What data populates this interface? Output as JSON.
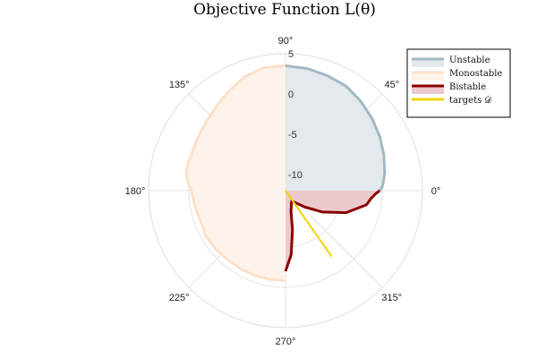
{
  "chart_data": {
    "type": "polar-area",
    "title": "Objective Function  L(θ)",
    "angular_ticks": [
      {
        "deg": 0,
        "label": "0°"
      },
      {
        "deg": 45,
        "label": "45°"
      },
      {
        "deg": 90,
        "label": "90°"
      },
      {
        "deg": 135,
        "label": "135°"
      },
      {
        "deg": 180,
        "label": "180°"
      },
      {
        "deg": 225,
        "label": "225°"
      },
      {
        "deg": 270,
        "label": "270°"
      },
      {
        "deg": 315,
        "label": "315°"
      }
    ],
    "radial_ticks": [
      {
        "value": -10,
        "label": "-10"
      },
      {
        "value": -5,
        "label": "-5"
      },
      {
        "value": 0,
        "label": "0"
      },
      {
        "value": 5,
        "label": "5"
      }
    ],
    "rlim": [
      -12,
      5
    ],
    "grid": true,
    "legend_position": "top-right",
    "series": [
      {
        "name": "Unstable",
        "line_color": "#a2b8c4",
        "fill_color": "#e3e9ec",
        "theta_deg": [
          0,
          2,
          5,
          10,
          20,
          30,
          40,
          50,
          60,
          70,
          80,
          90
        ],
        "r": [
          -0.3,
          0.0,
          0.2,
          0.5,
          1.0,
          1.5,
          2.0,
          2.5,
          3.0,
          3.2,
          3.4,
          3.5
        ]
      },
      {
        "name": "Monostable",
        "line_color": "#fde0c9",
        "fill_color": "#fef3ea",
        "theta_deg": [
          90,
          100,
          110,
          120,
          130,
          140,
          150,
          160,
          165,
          170,
          175,
          180,
          185,
          190,
          195,
          200,
          210,
          220,
          230,
          240,
          250,
          260,
          270
        ],
        "r": [
          3.5,
          3.5,
          3.0,
          2.2,
          1.5,
          1.0,
          0.7,
          0.5,
          0.6,
          0.5,
          0.2,
          -0.3,
          -0.5,
          -0.6,
          -0.7,
          -0.8,
          -0.6,
          -0.7,
          -0.8,
          -0.8,
          -0.8,
          -0.8,
          -0.8
        ]
      },
      {
        "name": "Bistable",
        "line_color": "#8b0000",
        "fill_color": "#ecc9cc",
        "theta_deg": [
          270,
          275,
          280,
          285,
          290,
          295,
          300,
          310,
          320,
          330,
          340,
          350,
          355,
          358,
          360
        ],
        "r": [
          -2.0,
          -4.0,
          -7.0,
          -9.4,
          -9.9,
          -10.3,
          -10.5,
          -10.0,
          -8.8,
          -6.7,
          -4.0,
          -1.8,
          -1.3,
          -0.8,
          -0.3
        ]
      },
      {
        "name": "targets 𝒟",
        "line_color": "#f5d300",
        "type": "line",
        "theta_deg": [
          305,
          305
        ],
        "r": [
          -12,
          -2.0
        ]
      }
    ]
  }
}
